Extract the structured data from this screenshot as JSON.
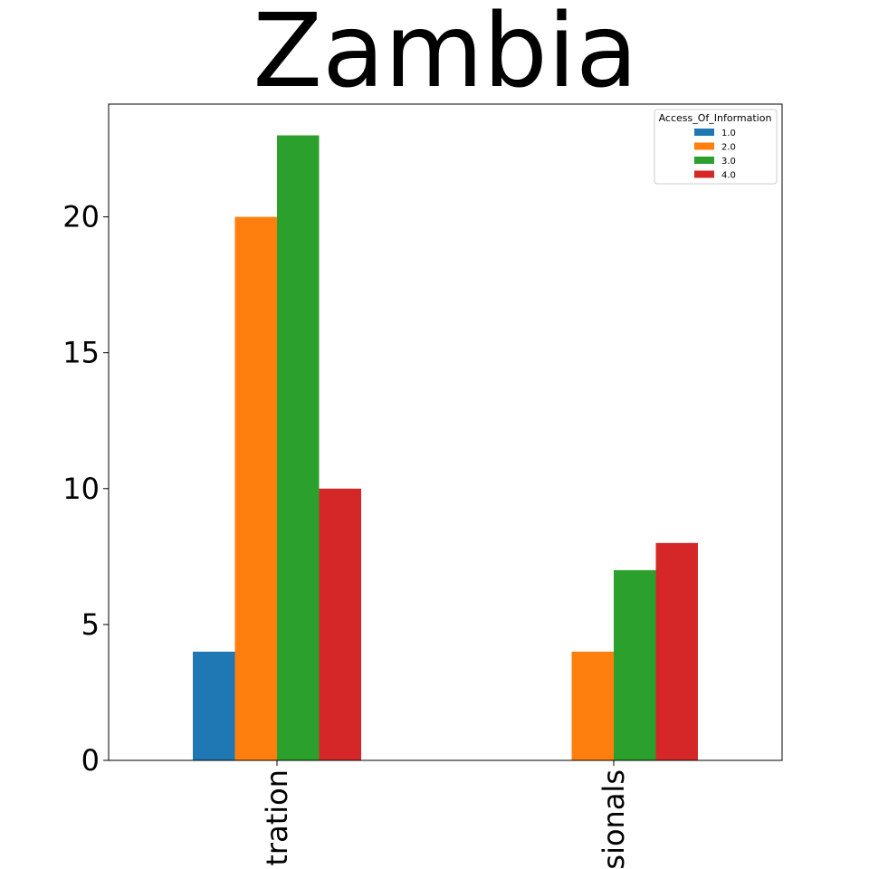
{
  "chart_data": {
    "type": "bar",
    "title": "Zambia",
    "xlabel": "",
    "ylabel": "",
    "categories": [
      "tration",
      "sionals"
    ],
    "ylim": [
      0,
      24.15
    ],
    "yticks": [
      0,
      5,
      10,
      15,
      20
    ],
    "legend": {
      "title": "Access_Of_Information",
      "placement": "top-right"
    },
    "series": [
      {
        "name": "1.0",
        "color": "#1f77b4",
        "values": [
          4,
          0
        ]
      },
      {
        "name": "2.0",
        "color": "#ff7f0e",
        "values": [
          20,
          4
        ]
      },
      {
        "name": "3.0",
        "color": "#2ca02c",
        "values": [
          23,
          7
        ]
      },
      {
        "name": "4.0",
        "color": "#d62728",
        "values": [
          10,
          8
        ]
      }
    ],
    "grid": false
  }
}
